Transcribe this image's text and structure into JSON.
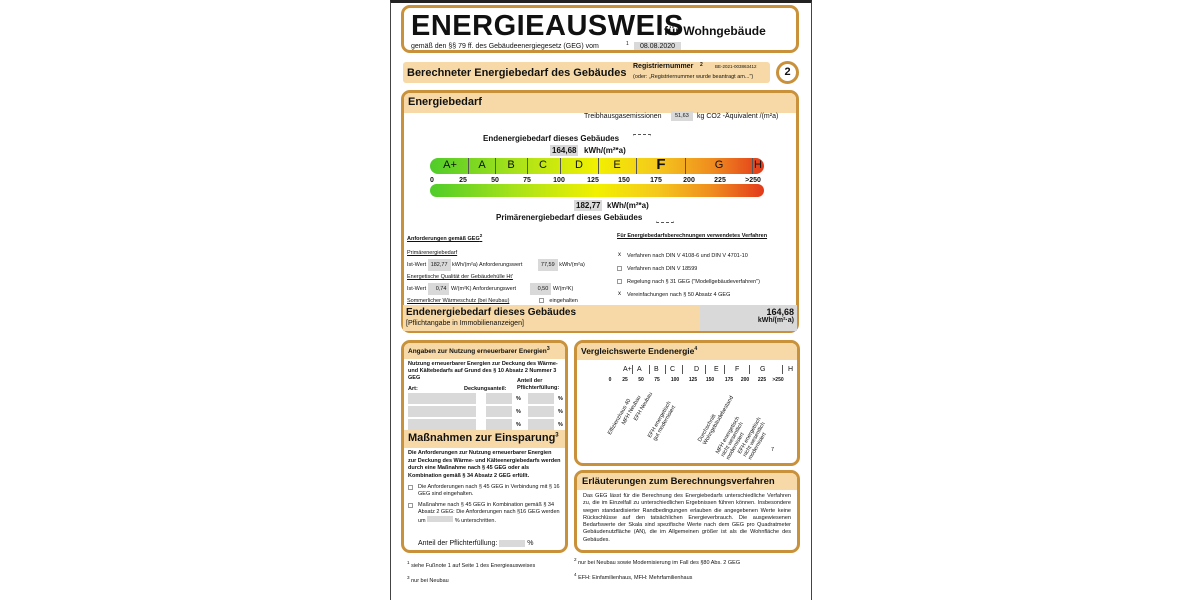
{
  "header": {
    "title": "ENERGIEAUSWEIS",
    "subtitle": "für Wohngebäude",
    "law": "gemäß den §§ 79 ff. des Gebäudeenergiegesetz (GEG) vom",
    "law_fn": "1",
    "date": "08.08.2020"
  },
  "section": {
    "title": "Berechneter Energiebedarf des Gebäudes",
    "reg_label": "Registriernummer",
    "reg_fn": "2",
    "reg_value": "BE-2021-003863412",
    "reg_note": "(oder: „Registriernummer wurde beantragt am...\")",
    "page": "2"
  },
  "energy": {
    "title": "Energiebedarf",
    "ghg_label": "Treibhausgasemissionen",
    "ghg_value": "51,63",
    "ghg_unit": "kg CO2 -Äquivalent /(m²a)",
    "end_label": "Endenergiebedarf dieses Gebäudes",
    "end_value": "164,68",
    "end_unit": "kWh/(m²*a)",
    "prim_label": "Primärenergiebedarf dieses Gebäudes",
    "prim_value": "182,77",
    "prim_unit": "kWh/(m²*a)",
    "classes": [
      "A+",
      "A",
      "B",
      "C",
      "D",
      "E",
      "F",
      "G",
      "H"
    ],
    "active_class": "F",
    "ticks": [
      "0",
      "25",
      "50",
      "75",
      "100",
      "125",
      "150",
      "175",
      "200",
      "225",
      ">250"
    ],
    "colors": {
      "green": "#4fcc2a",
      "yellow": "#f2f000",
      "red": "#e3391b",
      "accent": "#c8913a",
      "header_bg": "#f6d9a6"
    }
  },
  "req": {
    "title": "Anforderungen gemäß GEG",
    "fn": "2",
    "prim": "Primärenergiebedarf",
    "ist": "Ist-Wert",
    "ist_prim": "182,77",
    "unit_kwh": "kWh/(m²a)",
    "anf": "Anforderungswert",
    "anf_prim": "77,59",
    "huelle": "Energetische Qualität der Gebäudehülle Ht'",
    "ist_h": "0,74",
    "unit_w": "W/(m²K)",
    "anf_h": "0,50",
    "sommer": "Sommerlicher Wärmeschutz (bei Neubau)",
    "eingehalten": "eingehalten"
  },
  "methods": {
    "title": "Für Energiebedarfsberechnungen verwendetes Verfahren",
    "items": [
      {
        "label": "Verfahren nach DIN V 4108-6 und DIN V 4701-10",
        "mark": "x"
      },
      {
        "label": "Verfahren nach DIN V 18599",
        "mark": ""
      },
      {
        "label": "Regelung nach § 31 GEG (\"Modellgebäudeverfahren\")",
        "mark": ""
      },
      {
        "label": "Vereinfachungen nach § 50 Absatz 4 GEG",
        "mark": "x"
      }
    ]
  },
  "summary": {
    "title": "Endenergiebedarf dieses Gebäudes",
    "note": "[Pflichtangabe in Immobilienanzeigen]",
    "value": "164,68",
    "unit": "kWh/(m²·a)"
  },
  "renew": {
    "title": "Angaben zur Nutzung erneuerbarer Energien",
    "fn": "3",
    "text": "Nutzung erneuerbarer Energien zur Deckung des Wärme- und Kältebedarfs auf Grund des § 10 Absatz 2 Nummer 3 GEG",
    "col_art": "Art:",
    "col_deck": "Deckungsanteil:",
    "col_anteil": "Anteil der Pflichterfüllung:",
    "pct": "%"
  },
  "measures": {
    "title": "Maßnahmen zur Einsparung",
    "fn": "3",
    "text": "Die Anforderungen zur Nutzung erneuerbarer Energien zur Deckung des Wärme- und Kälteenergiebedarfs werden durch eine Maßnahme nach § 45 GEG oder als Kombination gemäß § 34 Absatz 2 GEG erfüllt.",
    "opt1": "Die Anforderungen nach § 45 GEG in Verbindung mit § 16 GEG sind eingehalten.",
    "opt2a": "Maßnahme nach § 45 GEG in Kombination gemäß § 34 Absatz 2 GEG: Die Anforderungen nach §16 GEG werden um",
    "opt2b": "% unterschritten.",
    "anteil": "Anteil der Pflichterfüllung:",
    "pct": "%"
  },
  "compare": {
    "title": "Vergleichswerte Endenergie",
    "fn": "4",
    "labels": [
      "Effizienzhaus 40",
      "MFH Neubau",
      "EFH Neubau",
      "EFH energetisch gut modernisiert",
      "Durchschnitt Wohngebäudebestand",
      "MFH energetisch nicht wesentlich modernisiert",
      "EFH energetisch nicht wesentlich modernisiert"
    ],
    "page_mark": "7"
  },
  "explain": {
    "title": "Erläuterungen zum Berechnungsverfahren",
    "text": "Das GEG lässt für die Berechnung des Energiebedarfs unterschiedliche Verfahren zu, die im Einzelfall zu unterschiedlichen Ergebnissen führen können. Insbesondere wegen standardisierter Randbedingungen erlauben die angegebenen Werte keine Rückschlüsse auf den tatsächlichen Energieverbrauch. Die ausgewiesenen Bedarfswerte der Skala sind spezifische Werte nach dem GEG pro Quadratmeter Gebäudenutzfläche (AN), die im Allgemeinen größer ist als die Wohnfläche des Gebäudes."
  },
  "footnotes": {
    "f1": "siehe Fußnote 1 auf Seite 1 des Energieausweises",
    "f3": "nur bei Neubau",
    "f2": "nur bei Neubau sowie Modernisierung im Fall des §80 Abs. 2 GEG",
    "f4": "EFH: Einfamilienhaus, MFH: Mehrfamilienhaus",
    "n1": "1",
    "n2": "2",
    "n3": "3",
    "n4": "4"
  }
}
